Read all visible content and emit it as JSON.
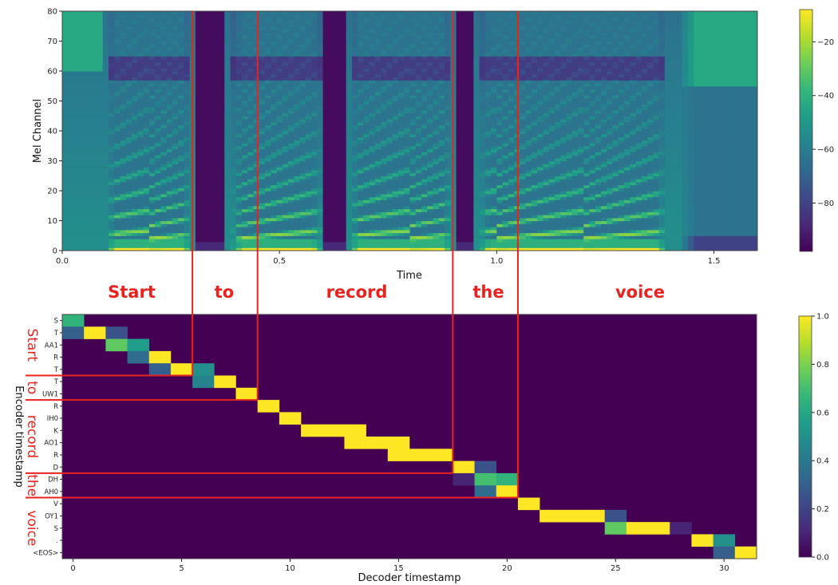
{
  "colors": {
    "viridis": [
      "#440154",
      "#482878",
      "#3e4989",
      "#31688e",
      "#26828e",
      "#1f9e89",
      "#35b779",
      "#6ece58",
      "#b5de2b",
      "#fde725"
    ],
    "annotation": "#e8231f",
    "frame": "#444444"
  },
  "chart_data": [
    {
      "type": "heatmap",
      "subtype": "mel-spectrogram",
      "xlabel": "Time",
      "ylabel": "Mel Channel",
      "xlim": [
        0,
        1.6
      ],
      "ylim": [
        0,
        80
      ],
      "xticks": [
        "0.0",
        "0.5",
        "1.0",
        "1.5"
      ],
      "yticks": [
        "0",
        "10",
        "20",
        "30",
        "40",
        "50",
        "60",
        "70",
        "80"
      ],
      "colorbar": {
        "ticks": [
          "-20",
          "-40",
          "-60",
          "-80"
        ],
        "min": -98,
        "max": -8
      },
      "word_boundaries": [
        0.3,
        0.45,
        0.9,
        1.05
      ],
      "silence_gaps": [
        [
          0.31,
          0.37
        ],
        [
          0.6,
          0.65
        ],
        [
          0.9,
          0.95
        ]
      ],
      "words": [
        "Start",
        "to",
        "record",
        "the",
        "voice"
      ]
    },
    {
      "type": "heatmap",
      "subtype": "attention-alignment",
      "xlabel": "Decoder timestamp",
      "ylabel": "Encoder timestamp",
      "xlim": [
        -0.5,
        31.5
      ],
      "xticks": [
        "0",
        "5",
        "10",
        "15",
        "20",
        "25",
        "30"
      ],
      "colorbar": {
        "ticks": [
          "0.0",
          "0.2",
          "0.4",
          "0.6",
          "0.8",
          "1.0"
        ],
        "min": 0,
        "max": 1
      },
      "encoder_tokens": [
        "S",
        "T",
        "AA1",
        "R",
        "T",
        "T",
        "UW1",
        "R",
        "IH0",
        "K",
        "AO1",
        "R",
        "D",
        "DH",
        "AH0",
        "V",
        "OY1",
        "S",
        ".",
        "<EOS>"
      ],
      "alignment": [
        [
          0,
          0,
          0.65
        ],
        [
          1,
          0,
          0.3
        ],
        [
          1,
          1,
          1.0
        ],
        [
          1,
          2,
          0.25
        ],
        [
          2,
          2,
          0.75
        ],
        [
          2,
          3,
          0.55
        ],
        [
          3,
          3,
          0.35
        ],
        [
          3,
          4,
          1.0
        ],
        [
          4,
          4,
          0.3
        ],
        [
          4,
          5,
          1.0
        ],
        [
          4,
          6,
          0.5
        ],
        [
          5,
          6,
          0.45
        ],
        [
          5,
          7,
          1.0
        ],
        [
          6,
          8,
          1.0
        ],
        [
          7,
          9,
          1.0
        ],
        [
          8,
          10,
          1.0
        ],
        [
          9,
          11,
          1.0
        ],
        [
          9,
          12,
          1.0
        ],
        [
          9,
          13,
          1.0
        ],
        [
          10,
          13,
          1.0
        ],
        [
          10,
          14,
          1.0
        ],
        [
          10,
          15,
          1.0
        ],
        [
          11,
          15,
          1.0
        ],
        [
          11,
          16,
          1.0
        ],
        [
          11,
          17,
          1.0
        ],
        [
          12,
          18,
          1.0
        ],
        [
          12,
          19,
          0.25
        ],
        [
          13,
          18,
          0.1
        ],
        [
          13,
          19,
          0.7
        ],
        [
          13,
          20,
          0.65
        ],
        [
          14,
          19,
          0.35
        ],
        [
          14,
          20,
          1.0
        ],
        [
          15,
          21,
          1.0
        ],
        [
          16,
          22,
          1.0
        ],
        [
          16,
          23,
          1.0
        ],
        [
          16,
          24,
          1.0
        ],
        [
          16,
          25,
          0.25
        ],
        [
          17,
          25,
          0.75
        ],
        [
          17,
          26,
          1.0
        ],
        [
          17,
          27,
          1.0
        ],
        [
          17,
          28,
          0.1
        ],
        [
          18,
          29,
          1.0
        ],
        [
          18,
          30,
          0.5
        ],
        [
          19,
          30,
          0.3
        ],
        [
          19,
          31,
          1.0
        ]
      ],
      "word_row_boundaries": [
        5,
        7,
        13,
        15
      ],
      "word_col_boundaries": [
        5.5,
        8.5,
        17.5,
        20.5
      ],
      "words": [
        "Start",
        "to",
        "record",
        "the",
        "voice"
      ]
    }
  ]
}
